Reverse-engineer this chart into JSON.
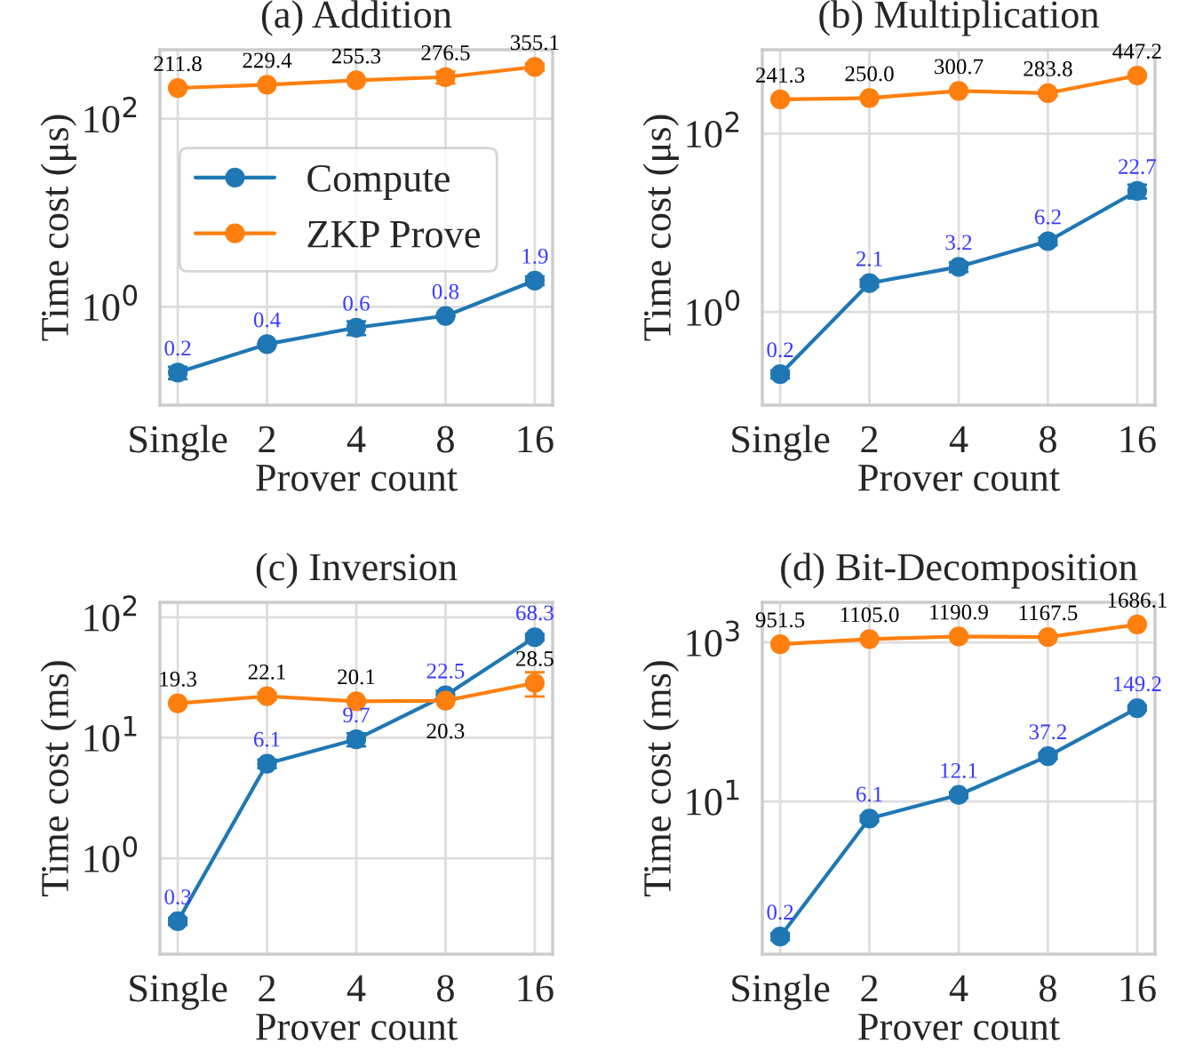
{
  "chart_data": [
    {
      "type": "line",
      "title": "(a) Addition",
      "xlabel": "Prover count",
      "ylabel": "Time cost (μs)",
      "categories": [
        "Single",
        "2",
        "4",
        "8",
        "16"
      ],
      "log": "y",
      "ylim": [
        0.09,
        540
      ],
      "yticks": [
        {
          "value": 1,
          "label": "10$^{0}$"
        },
        {
          "value": 100,
          "label": "10$^{2}$"
        }
      ],
      "grid": true,
      "marker": "circle",
      "data_labels": true,
      "legend": "left",
      "series": [
        {
          "name": "Compute",
          "color": "#1f77b4",
          "values": [
            0.2,
            0.4,
            0.6,
            0.8,
            1.9
          ],
          "errors": [
            0.03,
            null,
            0.1,
            null,
            0.2
          ]
        },
        {
          "name": "ZKP Prove",
          "color": "#ff7f0e",
          "values": [
            211.8,
            229.4,
            255.3,
            276.5,
            355.1
          ],
          "errors": [
            null,
            null,
            null,
            40,
            30
          ]
        }
      ]
    },
    {
      "type": "line",
      "title": "(b) Multiplication",
      "xlabel": "Prover count",
      "ylabel": "Time cost (μs)",
      "categories": [
        "Single",
        "2",
        "4",
        "8",
        "16"
      ],
      "log": "y",
      "ylim": [
        0.09,
        870
      ],
      "yticks": [
        {
          "value": 1,
          "label": "10$^{0}$"
        },
        {
          "value": 100,
          "label": "10$^{2}$"
        }
      ],
      "grid": true,
      "marker": "circle",
      "data_labels": true,
      "series": [
        {
          "color": "#1f77b4",
          "values": [
            0.2,
            2.1,
            3.2,
            6.2,
            22.7
          ],
          "errors": [
            0.02,
            0.2,
            0.4,
            0.6,
            4
          ]
        },
        {
          "color": "#ff7f0e",
          "values": [
            241.3,
            250.0,
            300.7,
            283.8,
            447.2
          ],
          "value_labels": [
            "241.3",
            "250.0",
            "300.7",
            "283.8",
            "447.2"
          ],
          "errors": [
            null,
            null,
            null,
            20,
            20
          ]
        }
      ]
    },
    {
      "type": "line",
      "title": "(c) Inversion",
      "xlabel": "Prover count",
      "ylabel": "Time cost (ms)",
      "categories": [
        "Single",
        "2",
        "4",
        "8",
        "16"
      ],
      "log": "y",
      "ylim": [
        0.16,
        133
      ],
      "yticks": [
        {
          "value": 1,
          "label": "10$^{0}$"
        },
        {
          "value": 10,
          "label": "10$^{1}$"
        },
        {
          "value": 100,
          "label": "10$^{2}$"
        }
      ],
      "grid": true,
      "marker": "circle",
      "data_labels": true,
      "series": [
        {
          "color": "#1f77b4",
          "values": [
            0.3,
            6.1,
            9.7,
            22.5,
            68.3
          ],
          "errors": [
            0.02,
            0.5,
            1.2,
            2,
            4
          ]
        },
        {
          "color": "#ff7f0e",
          "values": [
            19.3,
            22.1,
            20.1,
            20.3,
            28.5
          ],
          "errors": [
            null,
            1.5,
            null,
            null,
            [
              22,
              35
            ]
          ]
        }
      ]
    },
    {
      "type": "line",
      "title": "(d) Bit-Decomposition",
      "xlabel": "Prover count",
      "ylabel": "Time cost (ms)",
      "categories": [
        "Single",
        "2",
        "4",
        "8",
        "16"
      ],
      "log": "y",
      "ylim": [
        0.12,
        3200
      ],
      "yticks": [
        {
          "value": 10,
          "label": "10$^{1}$"
        },
        {
          "value": 1000,
          "label": "10$^{3}$"
        }
      ],
      "grid": true,
      "marker": "circle",
      "data_labels": true,
      "series": [
        {
          "color": "#1f77b4",
          "values": [
            0.2,
            6.1,
            12.1,
            37.2,
            149.2
          ],
          "errors": [
            0.02,
            0.5,
            1,
            3,
            10
          ]
        },
        {
          "color": "#ff7f0e",
          "values": [
            951.5,
            1105.0,
            1190.9,
            1167.5,
            1686.1
          ],
          "value_labels": [
            "951.5",
            "1105.0",
            "1190.9",
            "1167.5",
            "1686.1"
          ]
        }
      ]
    }
  ]
}
